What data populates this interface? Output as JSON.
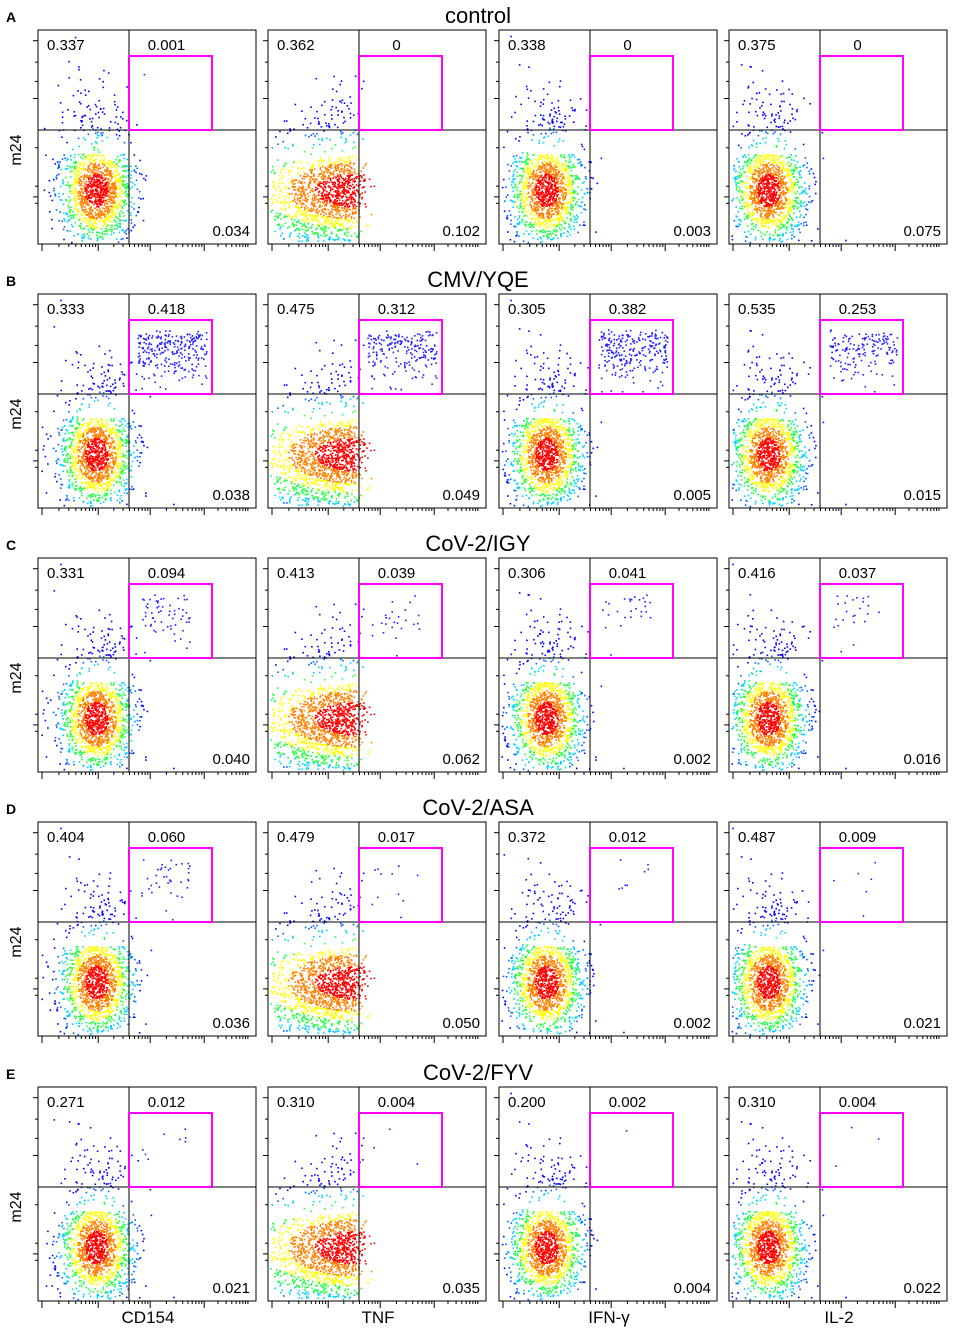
{
  "chart_data": {
    "type": "scatter",
    "subtype": "flow-cytometry-density-dot-plot-grid",
    "y_axis_label": "m24",
    "x_axis_labels": [
      "CD154",
      "TNF",
      "IFN-γ",
      "IL-2"
    ],
    "gate_color": "#ff00ff",
    "quadrant_line_color": "#000000",
    "density_colors": [
      "#0000ff",
      "#00c8ff",
      "#00ff64",
      "#ffff00",
      "#ff7f00",
      "#ff0000"
    ],
    "rows": [
      {
        "letter": "A",
        "title": "control",
        "panels": [
          {
            "marker": "CD154",
            "upper_left": "0.337",
            "upper_right": "0.001",
            "lower_right": "0.034"
          },
          {
            "marker": "TNF",
            "upper_left": "0.362",
            "upper_right": "0",
            "lower_right": "0.102"
          },
          {
            "marker": "IFN-γ",
            "upper_left": "0.338",
            "upper_right": "0",
            "lower_right": "0.003"
          },
          {
            "marker": "IL-2",
            "upper_left": "0.375",
            "upper_right": "0",
            "lower_right": "0.075"
          }
        ]
      },
      {
        "letter": "B",
        "title": "CMV/YQE",
        "panels": [
          {
            "marker": "CD154",
            "upper_left": "0.333",
            "upper_right": "0.418",
            "lower_right": "0.038"
          },
          {
            "marker": "TNF",
            "upper_left": "0.475",
            "upper_right": "0.312",
            "lower_right": "0.049"
          },
          {
            "marker": "IFN-γ",
            "upper_left": "0.305",
            "upper_right": "0.382",
            "lower_right": "0.005"
          },
          {
            "marker": "IL-2",
            "upper_left": "0.535",
            "upper_right": "0.253",
            "lower_right": "0.015"
          }
        ]
      },
      {
        "letter": "C",
        "title": "CoV-2/IGY",
        "panels": [
          {
            "marker": "CD154",
            "upper_left": "0.331",
            "upper_right": "0.094",
            "lower_right": "0.040"
          },
          {
            "marker": "TNF",
            "upper_left": "0.413",
            "upper_right": "0.039",
            "lower_right": "0.062"
          },
          {
            "marker": "IFN-γ",
            "upper_left": "0.306",
            "upper_right": "0.041",
            "lower_right": "0.002"
          },
          {
            "marker": "IL-2",
            "upper_left": "0.416",
            "upper_right": "0.037",
            "lower_right": "0.016"
          }
        ]
      },
      {
        "letter": "D",
        "title": "CoV-2/ASA",
        "panels": [
          {
            "marker": "CD154",
            "upper_left": "0.404",
            "upper_right": "0.060",
            "lower_right": "0.036"
          },
          {
            "marker": "TNF",
            "upper_left": "0.479",
            "upper_right": "0.017",
            "lower_right": "0.050"
          },
          {
            "marker": "IFN-γ",
            "upper_left": "0.372",
            "upper_right": "0.012",
            "lower_right": "0.002"
          },
          {
            "marker": "IL-2",
            "upper_left": "0.487",
            "upper_right": "0.009",
            "lower_right": "0.021"
          }
        ]
      },
      {
        "letter": "E",
        "title": "CoV-2/FYV",
        "panels": [
          {
            "marker": "CD154",
            "upper_left": "0.271",
            "upper_right": "0.012",
            "lower_right": "0.021"
          },
          {
            "marker": "TNF",
            "upper_left": "0.310",
            "upper_right": "0.004",
            "lower_right": "0.035"
          },
          {
            "marker": "IFN-γ",
            "upper_left": "0.200",
            "upper_right": "0.002",
            "lower_right": "0.004"
          },
          {
            "marker": "IL-2",
            "upper_left": "0.310",
            "upper_right": "0.004",
            "lower_right": "0.022"
          }
        ]
      }
    ]
  }
}
